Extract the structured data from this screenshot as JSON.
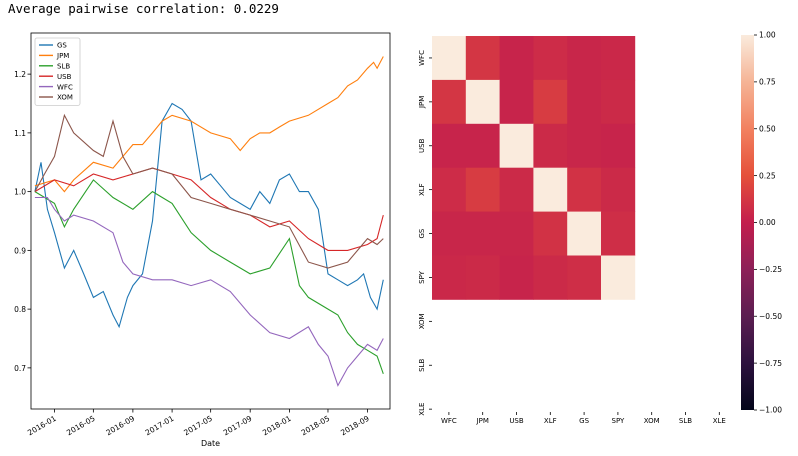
{
  "output_text": "Average pairwise correlation: 0.0229",
  "chart_data": [
    {
      "type": "line",
      "xlabel": "Date",
      "ylabel": "",
      "ylim": [
        0.63,
        1.27
      ],
      "xlim": [
        "2015-10-20",
        "2018-11-10"
      ],
      "legend_position": "top-left",
      "grid": false,
      "x_tick_labels": [
        "2016-01",
        "2016-05",
        "2016-09",
        "2017-01",
        "2017-05",
        "2017-09",
        "2018-01",
        "2018-05",
        "2018-09"
      ],
      "x_ticks": [
        "2016-01-01",
        "2016-05-01",
        "2016-09-01",
        "2017-01-01",
        "2017-05-01",
        "2017-09-01",
        "2018-01-01",
        "2018-05-01",
        "2018-09-01"
      ],
      "y_ticks": [
        0.7,
        0.8,
        0.9,
        1.0,
        1.1,
        1.2
      ],
      "y_tick_labels": [
        "0.7",
        "0.8",
        "0.9",
        "1.0",
        "1.1",
        "1.2"
      ],
      "series": [
        {
          "name": "GS",
          "color": "#1f77b4",
          "points": [
            [
              "2015-11-01",
              1.0
            ],
            [
              "2015-11-20",
              1.05
            ],
            [
              "2015-12-10",
              0.97
            ],
            [
              "2016-01-01",
              0.93
            ],
            [
              "2016-02-01",
              0.87
            ],
            [
              "2016-03-01",
              0.9
            ],
            [
              "2016-04-01",
              0.86
            ],
            [
              "2016-05-01",
              0.82
            ],
            [
              "2016-06-01",
              0.83
            ],
            [
              "2016-07-01",
              0.79
            ],
            [
              "2016-07-20",
              0.77
            ],
            [
              "2016-08-15",
              0.82
            ],
            [
              "2016-09-01",
              0.84
            ],
            [
              "2016-10-01",
              0.86
            ],
            [
              "2016-11-01",
              0.95
            ],
            [
              "2016-12-01",
              1.12
            ],
            [
              "2017-01-01",
              1.15
            ],
            [
              "2017-02-01",
              1.14
            ],
            [
              "2017-03-01",
              1.12
            ],
            [
              "2017-04-01",
              1.02
            ],
            [
              "2017-05-01",
              1.03
            ],
            [
              "2017-06-01",
              1.01
            ],
            [
              "2017-07-01",
              0.99
            ],
            [
              "2017-08-01",
              0.98
            ],
            [
              "2017-09-01",
              0.97
            ],
            [
              "2017-10-01",
              1.0
            ],
            [
              "2017-11-01",
              0.98
            ],
            [
              "2017-12-01",
              1.02
            ],
            [
              "2018-01-01",
              1.03
            ],
            [
              "2018-02-01",
              1.0
            ],
            [
              "2018-03-01",
              1.0
            ],
            [
              "2018-04-01",
              0.97
            ],
            [
              "2018-05-01",
              0.86
            ],
            [
              "2018-06-01",
              0.85
            ],
            [
              "2018-07-01",
              0.84
            ],
            [
              "2018-08-01",
              0.85
            ],
            [
              "2018-08-20",
              0.86
            ],
            [
              "2018-09-10",
              0.82
            ],
            [
              "2018-10-01",
              0.8
            ],
            [
              "2018-10-20",
              0.85
            ]
          ]
        },
        {
          "name": "JPM",
          "color": "#ff7f0e",
          "points": [
            [
              "2015-11-01",
              1.01
            ],
            [
              "2016-01-01",
              1.02
            ],
            [
              "2016-02-01",
              1.0
            ],
            [
              "2016-03-01",
              1.02
            ],
            [
              "2016-05-01",
              1.05
            ],
            [
              "2016-07-01",
              1.04
            ],
            [
              "2016-08-01",
              1.06
            ],
            [
              "2016-09-01",
              1.08
            ],
            [
              "2016-10-01",
              1.08
            ],
            [
              "2016-11-01",
              1.1
            ],
            [
              "2016-12-01",
              1.12
            ],
            [
              "2017-01-01",
              1.13
            ],
            [
              "2017-03-01",
              1.12
            ],
            [
              "2017-05-01",
              1.1
            ],
            [
              "2017-07-01",
              1.09
            ],
            [
              "2017-08-01",
              1.07
            ],
            [
              "2017-09-01",
              1.09
            ],
            [
              "2017-10-01",
              1.1
            ],
            [
              "2017-11-01",
              1.1
            ],
            [
              "2017-12-01",
              1.11
            ],
            [
              "2018-01-01",
              1.12
            ],
            [
              "2018-03-01",
              1.13
            ],
            [
              "2018-05-01",
              1.15
            ],
            [
              "2018-06-01",
              1.16
            ],
            [
              "2018-07-01",
              1.18
            ],
            [
              "2018-08-01",
              1.19
            ],
            [
              "2018-09-01",
              1.21
            ],
            [
              "2018-09-20",
              1.22
            ],
            [
              "2018-10-01",
              1.21
            ],
            [
              "2018-10-20",
              1.23
            ]
          ]
        },
        {
          "name": "SLB",
          "color": "#2ca02c",
          "points": [
            [
              "2015-11-01",
              1.0
            ],
            [
              "2016-01-01",
              0.98
            ],
            [
              "2016-02-01",
              0.94
            ],
            [
              "2016-03-01",
              0.97
            ],
            [
              "2016-05-01",
              1.02
            ],
            [
              "2016-07-01",
              0.99
            ],
            [
              "2016-09-01",
              0.97
            ],
            [
              "2016-11-01",
              1.0
            ],
            [
              "2017-01-01",
              0.98
            ],
            [
              "2017-03-01",
              0.93
            ],
            [
              "2017-05-01",
              0.9
            ],
            [
              "2017-07-01",
              0.88
            ],
            [
              "2017-09-01",
              0.86
            ],
            [
              "2017-11-01",
              0.87
            ],
            [
              "2018-01-01",
              0.92
            ],
            [
              "2018-02-01",
              0.84
            ],
            [
              "2018-03-01",
              0.82
            ],
            [
              "2018-05-01",
              0.8
            ],
            [
              "2018-06-01",
              0.79
            ],
            [
              "2018-07-01",
              0.76
            ],
            [
              "2018-08-01",
              0.74
            ],
            [
              "2018-09-01",
              0.73
            ],
            [
              "2018-10-01",
              0.72
            ],
            [
              "2018-10-20",
              0.69
            ]
          ]
        },
        {
          "name": "USB",
          "color": "#d62728",
          "points": [
            [
              "2015-11-01",
              1.0
            ],
            [
              "2016-01-01",
              1.02
            ],
            [
              "2016-03-01",
              1.01
            ],
            [
              "2016-05-01",
              1.03
            ],
            [
              "2016-07-01",
              1.02
            ],
            [
              "2016-09-01",
              1.03
            ],
            [
              "2016-11-01",
              1.04
            ],
            [
              "2017-01-01",
              1.03
            ],
            [
              "2017-03-01",
              1.02
            ],
            [
              "2017-05-01",
              0.99
            ],
            [
              "2017-07-01",
              0.97
            ],
            [
              "2017-09-01",
              0.96
            ],
            [
              "2017-11-01",
              0.94
            ],
            [
              "2018-01-01",
              0.95
            ],
            [
              "2018-03-01",
              0.92
            ],
            [
              "2018-05-01",
              0.9
            ],
            [
              "2018-07-01",
              0.9
            ],
            [
              "2018-09-01",
              0.91
            ],
            [
              "2018-10-01",
              0.92
            ],
            [
              "2018-10-20",
              0.96
            ]
          ]
        },
        {
          "name": "WFC",
          "color": "#9467bd",
          "points": [
            [
              "2015-11-01",
              0.99
            ],
            [
              "2015-12-10",
              0.99
            ],
            [
              "2016-01-01",
              0.97
            ],
            [
              "2016-02-01",
              0.95
            ],
            [
              "2016-03-01",
              0.96
            ],
            [
              "2016-05-01",
              0.95
            ],
            [
              "2016-07-01",
              0.93
            ],
            [
              "2016-08-01",
              0.88
            ],
            [
              "2016-09-01",
              0.86
            ],
            [
              "2016-11-01",
              0.85
            ],
            [
              "2017-01-01",
              0.85
            ],
            [
              "2017-03-01",
              0.84
            ],
            [
              "2017-05-01",
              0.85
            ],
            [
              "2017-07-01",
              0.83
            ],
            [
              "2017-09-01",
              0.79
            ],
            [
              "2017-11-01",
              0.76
            ],
            [
              "2018-01-01",
              0.75
            ],
            [
              "2018-03-01",
              0.77
            ],
            [
              "2018-04-01",
              0.74
            ],
            [
              "2018-05-01",
              0.72
            ],
            [
              "2018-06-01",
              0.67
            ],
            [
              "2018-07-01",
              0.7
            ],
            [
              "2018-08-01",
              0.72
            ],
            [
              "2018-09-01",
              0.74
            ],
            [
              "2018-10-01",
              0.73
            ],
            [
              "2018-10-20",
              0.75
            ]
          ]
        },
        {
          "name": "XOM",
          "color": "#8c564b",
          "points": [
            [
              "2015-11-01",
              1.0
            ],
            [
              "2015-12-01",
              1.03
            ],
            [
              "2016-01-01",
              1.06
            ],
            [
              "2016-02-01",
              1.13
            ],
            [
              "2016-03-01",
              1.1
            ],
            [
              "2016-05-01",
              1.07
            ],
            [
              "2016-06-01",
              1.06
            ],
            [
              "2016-07-01",
              1.12
            ],
            [
              "2016-08-01",
              1.06
            ],
            [
              "2016-09-01",
              1.03
            ],
            [
              "2016-11-01",
              1.04
            ],
            [
              "2017-01-01",
              1.03
            ],
            [
              "2017-03-01",
              0.99
            ],
            [
              "2017-05-01",
              0.98
            ],
            [
              "2017-07-01",
              0.97
            ],
            [
              "2017-09-01",
              0.96
            ],
            [
              "2017-11-01",
              0.95
            ],
            [
              "2018-01-01",
              0.94
            ],
            [
              "2018-03-01",
              0.88
            ],
            [
              "2018-05-01",
              0.87
            ],
            [
              "2018-07-01",
              0.88
            ],
            [
              "2018-09-01",
              0.92
            ],
            [
              "2018-10-01",
              0.91
            ],
            [
              "2018-10-20",
              0.92
            ]
          ]
        }
      ]
    },
    {
      "type": "heatmap",
      "x_categories": [
        "WFC",
        "JPM",
        "USB",
        "XLF",
        "GS",
        "SPY",
        "XOM",
        "SLB",
        "XLE"
      ],
      "y_categories": [
        "WFC",
        "JPM",
        "USB",
        "XLF",
        "GS",
        "SPY",
        "XOM",
        "SLB",
        "XLE"
      ],
      "values": [
        [
          1.0,
          0.12,
          0.03,
          0.07,
          0.04,
          0.05,
          null,
          null,
          null
        ],
        [
          0.12,
          1.0,
          0.03,
          0.15,
          0.04,
          0.06,
          null,
          null,
          null
        ],
        [
          0.03,
          0.03,
          1.0,
          0.06,
          0.04,
          0.03,
          null,
          null,
          null
        ],
        [
          0.07,
          0.15,
          0.06,
          1.0,
          0.1,
          0.06,
          null,
          null,
          null
        ],
        [
          0.04,
          0.04,
          0.04,
          0.1,
          1.0,
          0.08,
          null,
          null,
          null
        ],
        [
          0.05,
          0.06,
          0.03,
          0.06,
          0.08,
          1.0,
          null,
          null,
          null
        ],
        [
          null,
          null,
          null,
          null,
          null,
          null,
          null,
          null,
          null
        ],
        [
          null,
          null,
          null,
          null,
          null,
          null,
          null,
          null,
          null
        ],
        [
          null,
          null,
          null,
          null,
          null,
          null,
          null,
          null,
          null
        ]
      ],
      "colorbar_range": [
        -1.0,
        1.0
      ],
      "colorbar_ticks": [
        1.0,
        0.75,
        0.5,
        0.25,
        0.0,
        -0.25,
        -0.5,
        -0.75,
        -1.0
      ],
      "colorbar_tick_labels": [
        "1.00",
        "0.75",
        "0.50",
        "0.25",
        "0.00",
        "−0.25",
        "−0.50",
        "−0.75",
        "−1.00"
      ],
      "colormap": "rocket"
    }
  ]
}
